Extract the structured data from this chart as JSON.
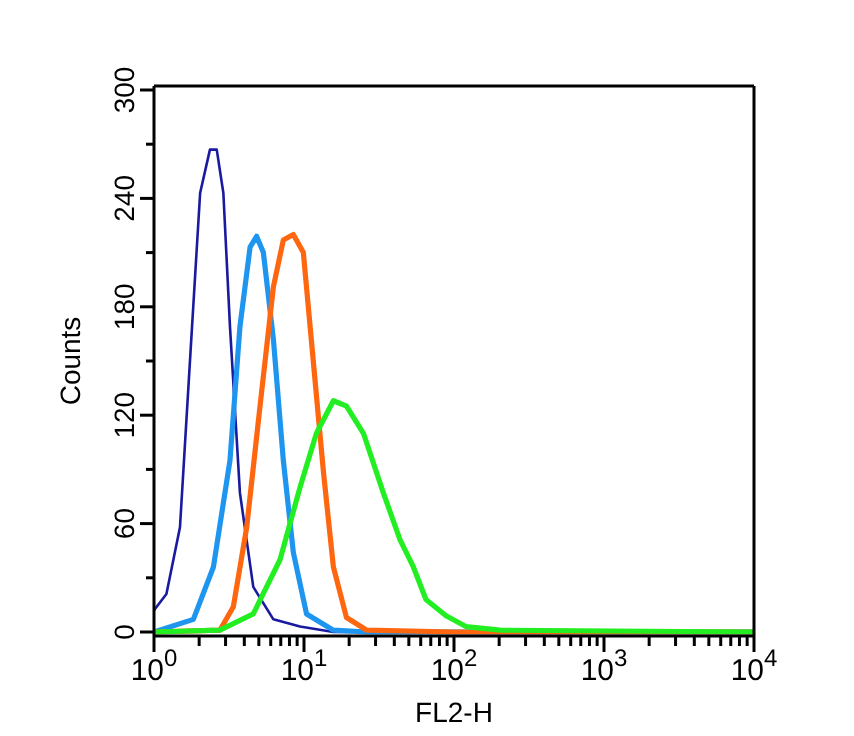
{
  "chart_data": {
    "type": "line",
    "xlabel": "FL2-H",
    "ylabel": "Counts",
    "log": "x",
    "marker": "none",
    "line_style": "solid",
    "grid": false,
    "xlim": [
      1,
      10000
    ],
    "ylim": [
      0,
      300
    ],
    "xticks": [
      {
        "value": 1,
        "label": "10$^{0}$"
      },
      {
        "value": 2,
        "label": null
      },
      {
        "value": 3,
        "label": null
      },
      {
        "value": 4,
        "label": null
      },
      {
        "value": 5,
        "label": null
      },
      {
        "value": 6,
        "label": null
      },
      {
        "value": 7,
        "label": null
      },
      {
        "value": 8,
        "label": null
      },
      {
        "value": 9,
        "label": null
      },
      {
        "value": 10,
        "label": "10$^{1}$"
      },
      {
        "value": 20,
        "label": null
      },
      {
        "value": 30,
        "label": null
      },
      {
        "value": 40,
        "label": null
      },
      {
        "value": 50,
        "label": null
      },
      {
        "value": 60,
        "label": null
      },
      {
        "value": 70,
        "label": null
      },
      {
        "value": 80,
        "label": null
      },
      {
        "value": 90,
        "label": null
      },
      {
        "value": 100,
        "label": "10$^{2}$"
      },
      {
        "value": 200,
        "label": null
      },
      {
        "value": 300,
        "label": null
      },
      {
        "value": 400,
        "label": null
      },
      {
        "value": 500,
        "label": null
      },
      {
        "value": 600,
        "label": null
      },
      {
        "value": 700,
        "label": null
      },
      {
        "value": 800,
        "label": null
      },
      {
        "value": 900,
        "label": null
      },
      {
        "value": 1000,
        "label": "10$^{3}$"
      },
      {
        "value": 2000,
        "label": null
      },
      {
        "value": 3000,
        "label": null
      },
      {
        "value": 4000,
        "label": null
      },
      {
        "value": 5000,
        "label": null
      },
      {
        "value": 6000,
        "label": null
      },
      {
        "value": 7000,
        "label": null
      },
      {
        "value": 8000,
        "label": null
      },
      {
        "value": 9000,
        "label": null
      },
      {
        "value": 10000,
        "label": "10$^{4}$"
      }
    ],
    "yticks": [
      0,
      {
        "value": 30,
        "label": null
      },
      60,
      {
        "value": 90,
        "label": null
      },
      120,
      {
        "value": 150,
        "label": null
      },
      180,
      {
        "value": 210,
        "label": null
      },
      240,
      {
        "value": 270,
        "label": null
      },
      300
    ],
    "series": [
      {
        "color": "#1a1aa0",
        "x": [
          1,
          1.21,
          1.49,
          1.74,
          2.03,
          2.36,
          2.62,
          2.9,
          3.21,
          3.74,
          4.59,
          6.25,
          9.4,
          15.7,
          10000
        ],
        "values": [
          12,
          21,
          58,
          151,
          243,
          267,
          267,
          243,
          169,
          77,
          25,
          7,
          3,
          0,
          0
        ]
      },
      {
        "color": "#1e96f0",
        "x": [
          1,
          1.83,
          2.49,
          3.21,
          3.74,
          4.37,
          4.83,
          5.36,
          6.25,
          7.28,
          8.49,
          10.4,
          15.7,
          26.2,
          10000
        ],
        "values": [
          0,
          7,
          36,
          95,
          169,
          213,
          219,
          210,
          162,
          95,
          44,
          10,
          1,
          0,
          0
        ]
      },
      {
        "color": "#ff6610",
        "x": [
          1,
          2.75,
          3.38,
          4.15,
          5.09,
          6.25,
          7.28,
          8.49,
          9.9,
          11.5,
          13.5,
          15.7,
          19.2,
          26.2,
          100,
          10000
        ],
        "values": [
          0,
          1,
          14,
          58,
          125,
          191,
          217,
          220,
          210,
          151,
          88,
          36,
          8,
          1,
          0,
          0
        ]
      },
      {
        "color": "#22ee22",
        "x": [
          1,
          2.75,
          4.59,
          6.92,
          9.4,
          12.1,
          15.7,
          19.2,
          24.9,
          33.8,
          43.7,
          53.6,
          65,
          88.5,
          120,
          203,
          10000
        ],
        "values": [
          0,
          1,
          10,
          40,
          80,
          110,
          128,
          125,
          110,
          77,
          51,
          36,
          18,
          9,
          3,
          1,
          0
        ]
      }
    ]
  }
}
